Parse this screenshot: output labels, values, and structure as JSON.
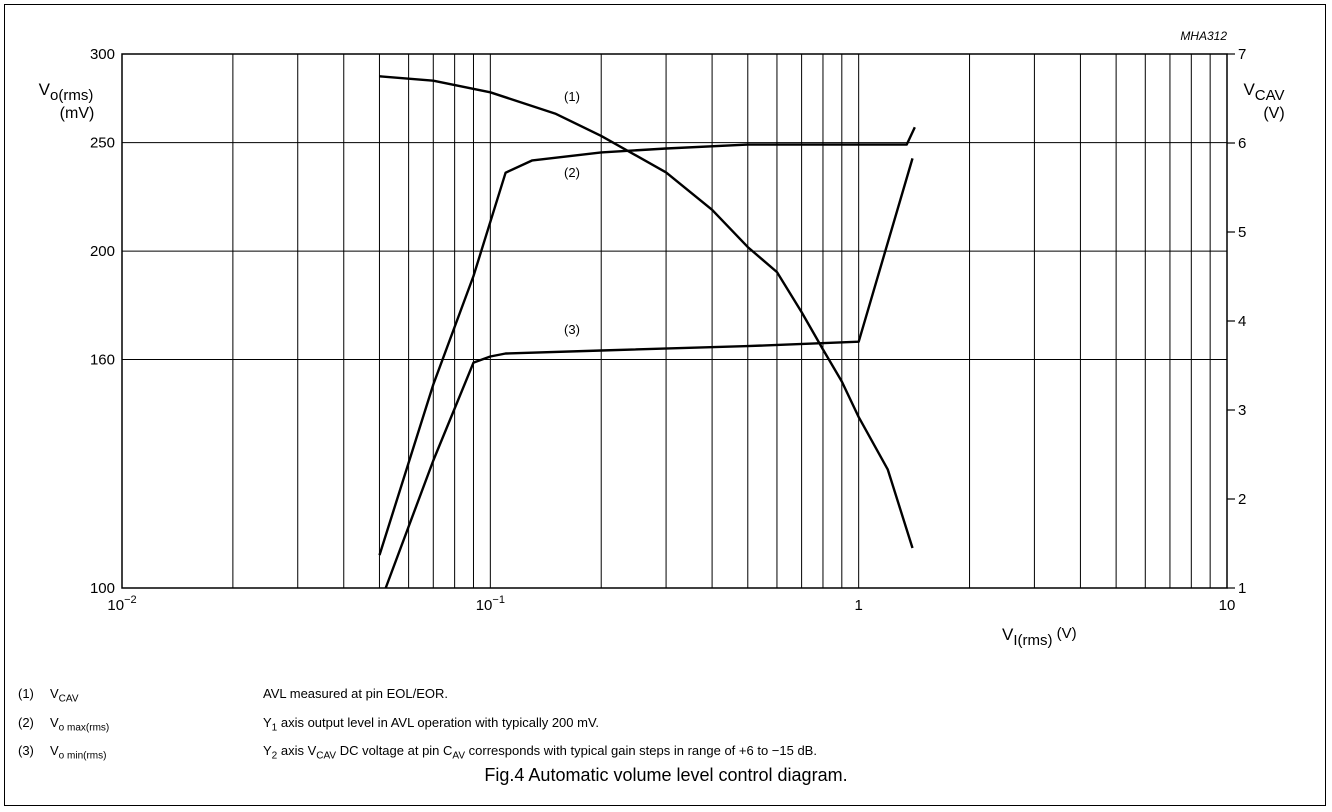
{
  "chart_data": {
    "type": "line",
    "figure_code": "MHA312",
    "caption": "Fig.4  Automatic volume level control diagram.",
    "x_axis": {
      "label_base": "V",
      "label_sub": "I(rms)",
      "label_unit": "(V)",
      "scale": "log",
      "range": [
        0.01,
        10
      ],
      "tick_labels": [
        {
          "value": 0.01,
          "base": "10",
          "exp": "−2"
        },
        {
          "value": 0.1,
          "base": "10",
          "exp": "−1"
        },
        {
          "value": 1,
          "base": "1",
          "exp": ""
        },
        {
          "value": 10,
          "base": "10",
          "exp": ""
        }
      ]
    },
    "y_axis_left": {
      "label_base": "V",
      "label_sub": "o(rms)",
      "label_unit": "(mV)",
      "range": [
        100,
        300
      ],
      "ticks": [
        100,
        160,
        200,
        250,
        300
      ]
    },
    "y_axis_right": {
      "label_base": "V",
      "label_sub": "CAV",
      "label_unit": "(V)",
      "range": [
        1,
        7
      ],
      "ticks": [
        1,
        2,
        3,
        4,
        5,
        6,
        7
      ]
    },
    "grid": true,
    "series": [
      {
        "name": "(1)",
        "axis": "right",
        "points": [
          [
            0.05,
            6.75
          ],
          [
            0.07,
            6.7
          ],
          [
            0.1,
            6.57
          ],
          [
            0.15,
            6.33
          ],
          [
            0.2,
            6.08
          ],
          [
            0.3,
            5.67
          ],
          [
            0.4,
            5.25
          ],
          [
            0.5,
            4.83
          ],
          [
            0.6,
            4.55
          ],
          [
            0.7,
            4.1
          ],
          [
            0.8,
            3.68
          ],
          [
            0.9,
            3.32
          ],
          [
            1.0,
            2.92
          ],
          [
            1.2,
            2.33
          ],
          [
            1.4,
            1.45
          ]
        ]
      },
      {
        "name": "(2)",
        "axis": "left",
        "points": [
          [
            0.05,
            107
          ],
          [
            0.07,
            152
          ],
          [
            0.09,
            190
          ],
          [
            0.11,
            235
          ],
          [
            0.13,
            241
          ],
          [
            0.2,
            245
          ],
          [
            0.3,
            247
          ],
          [
            0.5,
            249
          ],
          [
            1.0,
            249
          ],
          [
            1.35,
            249
          ],
          [
            1.42,
            258
          ]
        ]
      },
      {
        "name": "(3)",
        "axis": "left",
        "points": [
          [
            0.052,
            100
          ],
          [
            0.07,
            130
          ],
          [
            0.09,
            159
          ],
          [
            0.1,
            161
          ],
          [
            0.11,
            162
          ],
          [
            0.2,
            163
          ],
          [
            0.5,
            164.5
          ],
          [
            1.0,
            166
          ],
          [
            1.4,
            242
          ]
        ]
      }
    ],
    "notes": [
      {
        "num": "(1)",
        "sym_base": "V",
        "sym_sub": "CAV",
        "desc": "AVL measured at pin EOL/EOR."
      },
      {
        "num": "(2)",
        "sym_base": "V",
        "sym_sub": "o max(rms)",
        "desc_pre": "Y",
        "desc_sub": "1",
        "desc_post": " axis output level in AVL operation with typically 200 mV."
      },
      {
        "num": "(3)",
        "sym_base": "V",
        "sym_sub": "o min(rms)",
        "desc_pre": "Y",
        "desc_sub": "2",
        "desc_mid": " axis V",
        "desc_sub2": "CAV",
        "desc_mid2": " DC voltage at pin C",
        "desc_sub3": "AV",
        "desc_post": " corresponds with typical gain steps in range of +6 to −15 dB."
      }
    ]
  }
}
